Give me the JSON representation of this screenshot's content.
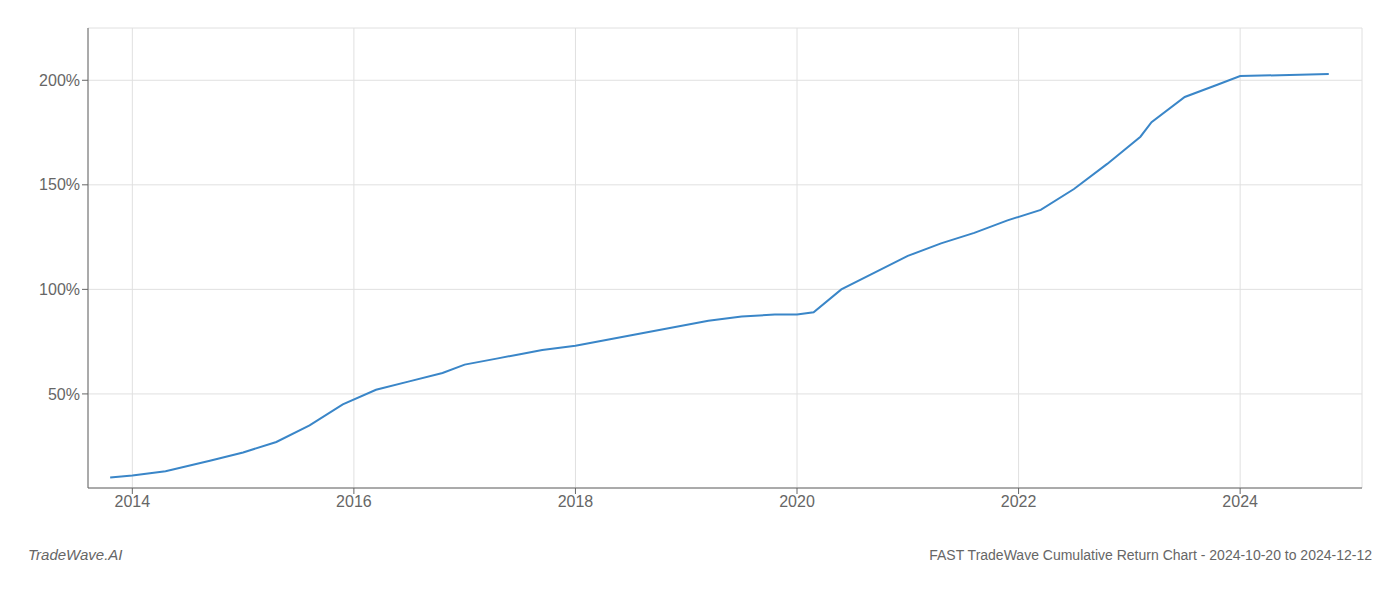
{
  "chart_data": {
    "type": "line",
    "title": "FAST TradeWave Cumulative Return Chart - 2024-10-20 to 2024-12-12",
    "annotations": [
      "TradeWave.AI"
    ],
    "x": [
      2013.8,
      2014.0,
      2014.3,
      2014.7,
      2015.0,
      2015.3,
      2015.6,
      2015.9,
      2016.2,
      2016.5,
      2016.8,
      2017.0,
      2017.3,
      2017.5,
      2017.7,
      2018.0,
      2018.3,
      2018.6,
      2018.9,
      2019.2,
      2019.5,
      2019.8,
      2020.0,
      2020.15,
      2020.4,
      2020.7,
      2021.0,
      2021.3,
      2021.6,
      2021.9,
      2022.2,
      2022.5,
      2022.8,
      2023.1,
      2023.2,
      2023.5,
      2023.8,
      2024.0,
      2024.8
    ],
    "values": [
      10,
      11,
      13,
      18,
      22,
      27,
      35,
      45,
      52,
      56,
      60,
      64,
      67,
      69,
      71,
      73,
      76,
      79,
      82,
      85,
      87,
      88,
      88,
      89,
      100,
      108,
      116,
      122,
      127,
      133,
      138,
      148,
      160,
      173,
      180,
      192,
      198,
      202,
      203
    ],
    "color": "#3a86c8",
    "xlim": [
      2013.6,
      2025.1
    ],
    "ylim": [
      5,
      225
    ],
    "xticks": [
      2014,
      2016,
      2018,
      2020,
      2022,
      2024
    ],
    "yticks": [
      {
        "value": 50,
        "label": "50%"
      },
      {
        "value": 100,
        "label": "100%"
      },
      {
        "value": 150,
        "label": "150%"
      },
      {
        "value": 200,
        "label": "200%"
      }
    ],
    "grid": true
  }
}
